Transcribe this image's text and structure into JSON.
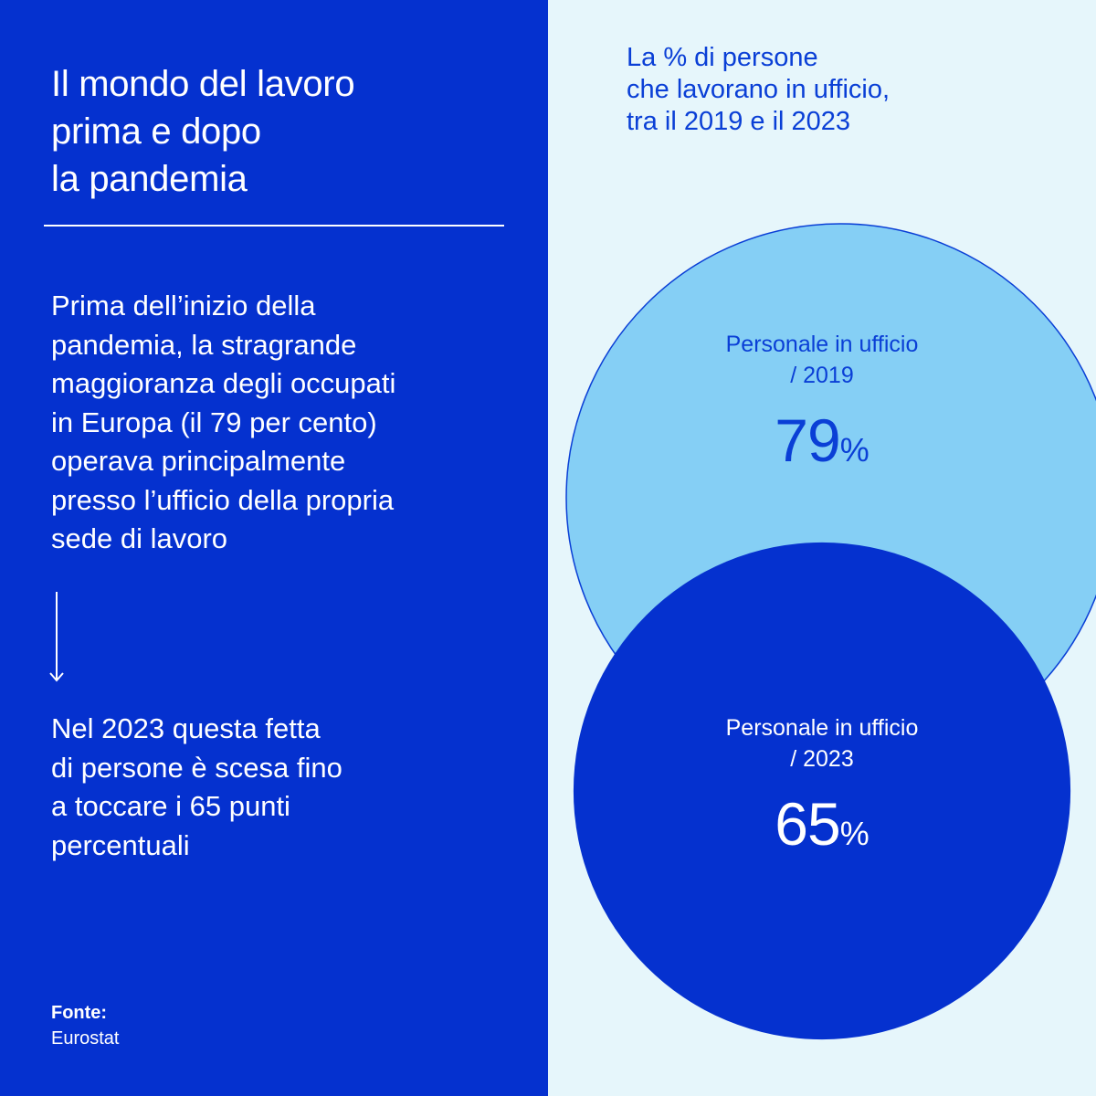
{
  "left": {
    "title_lines": [
      "Il mondo del lavoro",
      "prima e dopo",
      "la pandemia"
    ],
    "paragraph1_lines": [
      "Prima dell’inizio della",
      "pandemia, la stragrande",
      "maggioranza degli occupati",
      "in Europa (il 79 per cento)",
      "operava principalmente",
      "presso l’ufficio della propria",
      "sede di lavoro"
    ],
    "arrow_icon": "arrow-down-icon",
    "paragraph2_lines": [
      "Nel 2023 questa fetta",
      "di persone è scesa fino",
      "a toccare i 65 punti",
      "percentuali"
    ],
    "source_label": "Fonte:",
    "source_value": "Eurostat"
  },
  "colors": {
    "left_background": "#0531cf",
    "right_background": "#e6f6fb",
    "bubble_2019": "#85cff5",
    "bubble_2023": "#0531cf",
    "accent_text": "#0a3fd6"
  },
  "chart_data": {
    "type": "bubble",
    "title_lines": [
      "La % di persone",
      "che lavorano in ufficio,",
      "tra il 2019 e il 2023"
    ],
    "series": [
      {
        "name": "2019",
        "label_lines": [
          "Personale in ufficio",
          "/ 2019"
        ],
        "value": 79,
        "value_text": "79",
        "unit": "%"
      },
      {
        "name": "2023",
        "label_lines": [
          "Personale in ufficio",
          "/ 2023"
        ],
        "value": 65,
        "value_text": "65",
        "unit": "%"
      }
    ]
  }
}
